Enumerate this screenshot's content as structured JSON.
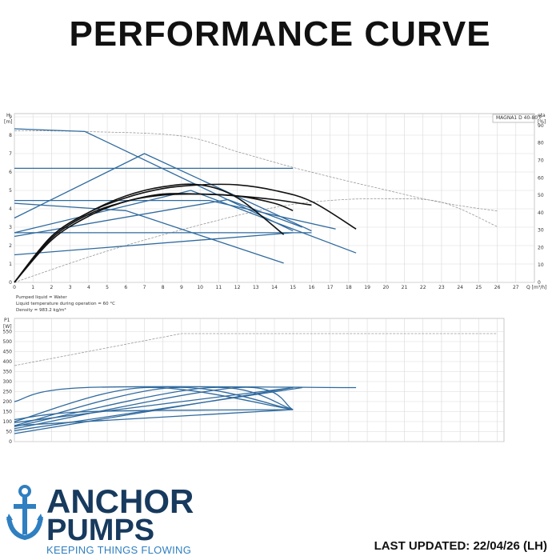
{
  "header": {
    "title": "PERFORMANCE CURVE"
  },
  "brand": {
    "line1": "ANCHOR",
    "line2": "PUMPS",
    "tagline": "KEEPING THINGS FLOWING",
    "colors": {
      "primary": "#173a5e",
      "accent": "#2f7fc1"
    }
  },
  "footer": {
    "last_updated": "LAST UPDATED: 22/04/26 (LH)"
  },
  "conditions": [
    "Pumped liquid = Water",
    "Liquid temperature during operation = 60 °C",
    "Density = 983.2 kg/m³"
  ],
  "chart_data": [
    {
      "type": "line",
      "legend": "MAGNA1 D 40-80 F",
      "xlabel": "Q [m³/h]",
      "ylabel": "H\n[m]",
      "y2label": "eta\n[%]",
      "xlim": [
        0,
        28
      ],
      "ylim": [
        0,
        9
      ],
      "y2lim": [
        0,
        95
      ],
      "xticks": [
        0,
        1,
        2,
        3,
        4,
        5,
        6,
        7,
        8,
        9,
        10,
        11,
        12,
        13,
        14,
        15,
        16,
        17,
        18,
        19,
        20,
        21,
        22,
        23,
        24,
        25,
        26,
        27
      ],
      "yticks": [
        0,
        1,
        2,
        3,
        4,
        5,
        6,
        7,
        8,
        9
      ],
      "y2ticks": [
        0,
        10,
        20,
        30,
        40,
        50,
        60,
        70,
        80,
        90
      ],
      "grid": true,
      "colors": {
        "control": "#2f6a9e",
        "pump": "#111111",
        "eta": "#9a9a9a",
        "grid": "#d9d9d9"
      },
      "control_curves": [
        {
          "x": [
            0,
            3.8,
            15
          ],
          "y": [
            8.35,
            8.2,
            2.8
          ]
        },
        {
          "x": [
            0,
            15
          ],
          "y": [
            6.2,
            6.2
          ]
        },
        {
          "x": [
            0,
            7,
            16
          ],
          "y": [
            3.5,
            7.0,
            2.8
          ]
        },
        {
          "x": [
            0,
            6,
            14.5
          ],
          "y": [
            4.3,
            3.9,
            1.05
          ]
        },
        {
          "x": [
            0,
            10.5,
            17.3
          ],
          "y": [
            4.45,
            4.45,
            2.9
          ]
        },
        {
          "x": [
            0,
            9.5,
            18.4
          ],
          "y": [
            2.7,
            5.0,
            1.6
          ]
        },
        {
          "x": [
            0,
            16
          ],
          "y": [
            2.7,
            2.7
          ]
        },
        {
          "x": [
            0,
            15
          ],
          "y": [
            1.5,
            2.7
          ]
        },
        {
          "x": [
            0,
            11.5,
            15.5
          ],
          "y": [
            2.5,
            4.5,
            3.0
          ]
        }
      ],
      "pump_curves": [
        {
          "x": [
            0,
            2,
            4,
            6,
            8,
            10,
            12,
            14,
            15
          ],
          "y": [
            0,
            2.3,
            3.6,
            4.4,
            4.75,
            4.8,
            4.7,
            4.3,
            3.9
          ]
        },
        {
          "x": [
            0,
            2,
            4,
            6,
            8,
            10,
            12,
            14,
            16,
            18.4
          ],
          "y": [
            0,
            2.5,
            3.8,
            4.6,
            5.1,
            5.3,
            5.3,
            5.0,
            4.4,
            2.9
          ]
        },
        {
          "x": [
            0,
            2,
            4,
            6,
            8,
            10,
            12,
            14.5
          ],
          "y": [
            0,
            2.5,
            3.8,
            4.7,
            5.2,
            5.3,
            4.6,
            2.6
          ]
        },
        {
          "x": [
            0,
            2,
            4,
            6,
            8,
            10,
            12,
            14,
            16
          ],
          "y": [
            0,
            2.4,
            3.7,
            4.4,
            4.8,
            4.8,
            4.7,
            4.5,
            4.2
          ]
        }
      ],
      "eta_curves": [
        {
          "x": [
            0,
            4,
            9,
            12,
            15,
            18,
            20,
            22,
            24,
            26
          ],
          "y": [
            87,
            86.5,
            84,
            75,
            66,
            58,
            53,
            48,
            44,
            41
          ]
        },
        {
          "x": [
            0,
            5,
            10,
            14,
            17,
            20,
            23,
            26
          ],
          "y": [
            0,
            18,
            33,
            43,
            47,
            48,
            46,
            32
          ]
        }
      ]
    },
    {
      "type": "line",
      "ylabel": "P1\n[W]",
      "xlim": [
        0,
        28
      ],
      "ylim": [
        0,
        600
      ],
      "yticks": [
        0,
        50,
        100,
        150,
        200,
        250,
        300,
        350,
        400,
        450,
        500,
        550
      ],
      "grid": true,
      "colors": {
        "control": "#2f6a9e",
        "max": "#9a9a9a"
      },
      "max_curve": {
        "x": [
          0,
          9,
          26
        ],
        "y": [
          380,
          540,
          540
        ]
      },
      "control_curves": [
        {
          "x": [
            0,
            3.8,
            18.4
          ],
          "y": [
            200,
            270,
            270
          ]
        },
        {
          "x": [
            0,
            7,
            15
          ],
          "y": [
            100,
            270,
            160
          ]
        },
        {
          "x": [
            0,
            8.5,
            15
          ],
          "y": [
            80,
            270,
            160
          ]
        },
        {
          "x": [
            0,
            10.5,
            15
          ],
          "y": [
            75,
            270,
            160
          ]
        },
        {
          "x": [
            0,
            12,
            15
          ],
          "y": [
            65,
            270,
            160
          ]
        },
        {
          "x": [
            0,
            15.5
          ],
          "y": [
            55,
            270
          ]
        },
        {
          "x": [
            0,
            15
          ],
          "y": [
            40,
            270
          ]
        },
        {
          "x": [
            0,
            4,
            15
          ],
          "y": [
            110,
            150,
            160
          ]
        },
        {
          "x": [
            0,
            15
          ],
          "y": [
            80,
            160
          ]
        },
        {
          "x": [
            0,
            9,
            15
          ],
          "y": [
            95,
            200,
            270
          ]
        }
      ]
    }
  ]
}
